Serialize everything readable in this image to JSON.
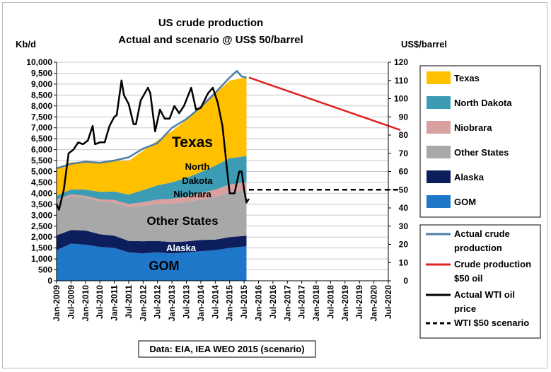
{
  "chart_data": {
    "type": "area",
    "title_line1": "US crude production",
    "title_line2": "Actual and scenario @ US$ 50/barrel",
    "left_axis_unit": "Kb/d",
    "right_axis_unit": "US$/barrel",
    "source_note": "Data: EIA, IEA WEO 2015 (scenario)",
    "left_axis": {
      "min": 0,
      "max": 10000,
      "step": 500,
      "tick_labels": [
        "0",
        "500",
        "1,000",
        "1,500",
        "2,000",
        "2,500",
        "3,000",
        "3,500",
        "4,000",
        "4,500",
        "5,000",
        "5,500",
        "6,000",
        "6,500",
        "7,000",
        "7,500",
        "8,000",
        "8,500",
        "9,000",
        "9,500",
        "10,000"
      ]
    },
    "right_axis": {
      "min": 0,
      "max": 120,
      "step": 10,
      "tick_labels": [
        "0",
        "10",
        "20",
        "30",
        "40",
        "50",
        "60",
        "70",
        "80",
        "90",
        "100",
        "110",
        "120"
      ]
    },
    "x_axis": {
      "start": "Jan-2009",
      "end": "Jul-2020",
      "tick_labels": [
        "Jan-2009",
        "Jul-2009",
        "Jan-2010",
        "Jul-2010",
        "Jan-2011",
        "Jul-2011",
        "Jan-2012",
        "Jul-2012",
        "Jan-2013",
        "Jul-2013",
        "Jan-2014",
        "Jul-2014",
        "Jan-2015",
        "Jul-2015",
        "Jan-2016",
        "Jul-2016",
        "Jan-2017",
        "Jul-2017",
        "Jan-2018",
        "Jul-2018",
        "Jan-2019",
        "Jul-2019",
        "Jan-2020",
        "Jul-2020"
      ]
    },
    "stack_dates": [
      "2009-01",
      "2009-07",
      "2010-01",
      "2010-07",
      "2011-01",
      "2011-07",
      "2012-01",
      "2012-07",
      "2013-01",
      "2013-07",
      "2014-01",
      "2014-07",
      "2015-01",
      "2015-08"
    ],
    "stacked_series": [
      {
        "name": "GOM",
        "color": "#1f77c9",
        "values": [
          1400,
          1700,
          1650,
          1550,
          1500,
          1300,
          1250,
          1300,
          1250,
          1300,
          1350,
          1400,
          1500,
          1580
        ]
      },
      {
        "name": "Alaska",
        "color": "#0c1f5c",
        "values": [
          680,
          620,
          650,
          580,
          560,
          520,
          560,
          520,
          520,
          500,
          520,
          480,
          500,
          480
        ]
      },
      {
        "name": "Other States",
        "color": "#a8a8a8",
        "values": [
          1550,
          1550,
          1500,
          1500,
          1520,
          1550,
          1620,
          1700,
          1750,
          1800,
          1850,
          1950,
          2050,
          2100
        ]
      },
      {
        "name": "Niobrara",
        "color": "#d9a0a0",
        "values": [
          80,
          80,
          90,
          100,
          120,
          140,
          170,
          200,
          230,
          260,
          300,
          340,
          360,
          350
        ]
      },
      {
        "name": "North Dakota",
        "color": "#3c9cb4",
        "values": [
          180,
          230,
          280,
          340,
          380,
          430,
          550,
          650,
          750,
          850,
          950,
          1100,
          1200,
          1200
        ]
      },
      {
        "name": "Texas",
        "color": "#ffc000",
        "values": [
          1250,
          1250,
          1250,
          1300,
          1400,
          1550,
          1800,
          2050,
          2350,
          2650,
          2950,
          3300,
          3550,
          3600
        ]
      }
    ],
    "series_labels": [
      {
        "series": "Texas",
        "text": "Texas"
      },
      {
        "series": "North Dakota",
        "text": "North"
      },
      {
        "series": "North Dakota",
        "text": "Dakota"
      },
      {
        "series": "Niobrara",
        "text": "Niobrara"
      },
      {
        "series": "Other States",
        "text": "Other States"
      },
      {
        "series": "Alaska",
        "text": "Alaska"
      },
      {
        "series": "GOM",
        "text": "GOM"
      }
    ],
    "wti_series": {
      "name": "Actual WTI oil price",
      "color": "#000000",
      "dates": [
        "2009-01",
        "2009-02",
        "2009-04",
        "2009-06",
        "2009-08",
        "2009-10",
        "2009-12",
        "2010-02",
        "2010-04",
        "2010-05",
        "2010-07",
        "2010-09",
        "2010-11",
        "2011-01",
        "2011-02",
        "2011-04",
        "2011-05",
        "2011-07",
        "2011-09",
        "2011-10",
        "2011-12",
        "2012-03",
        "2012-04",
        "2012-06",
        "2012-08",
        "2012-10",
        "2012-12",
        "2013-02",
        "2013-04",
        "2013-06",
        "2013-09",
        "2013-11",
        "2014-01",
        "2014-04",
        "2014-06",
        "2014-08",
        "2014-10",
        "2014-12",
        "2015-01",
        "2015-03",
        "2015-05",
        "2015-06",
        "2015-07",
        "2015-08",
        "2015-09"
      ],
      "values": [
        42,
        39,
        50,
        70,
        72,
        76,
        75,
        77,
        85,
        75,
        76,
        76,
        85,
        90,
        91,
        110,
        102,
        97,
        86,
        86,
        99,
        106,
        103,
        82,
        94,
        89,
        89,
        96,
        92,
        96,
        106,
        94,
        95,
        103,
        106,
        98,
        85,
        60,
        48,
        48,
        60,
        60,
        50,
        43,
        45
      ]
    },
    "actual_crude_production": {
      "name": "Actual crude production",
      "color": "#4a7ea8",
      "dates": [
        "2009-01",
        "2009-07",
        "2010-01",
        "2010-07",
        "2011-01",
        "2011-07",
        "2012-01",
        "2012-07",
        "2013-01",
        "2013-07",
        "2014-01",
        "2014-07",
        "2014-10",
        "2015-01",
        "2015-04",
        "2015-06",
        "2015-08"
      ],
      "values": [
        5150,
        5350,
        5450,
        5400,
        5500,
        5650,
        6050,
        6300,
        7000,
        7400,
        7950,
        8600,
        8950,
        9300,
        9600,
        9350,
        9300
      ]
    },
    "scenario_production": {
      "name": "Crude production $50 oil",
      "color": "#e0201c",
      "dates": [
        "2015-09",
        "2020-12"
      ],
      "values": [
        9300,
        6900
      ]
    },
    "wti_scenario": {
      "name": "WTI $50  scenario",
      "color": "#000000",
      "dates": [
        "2015-09",
        "2020-12"
      ],
      "values": [
        50,
        50
      ]
    },
    "legend_right": [
      {
        "series": "Texas",
        "text": "Texas",
        "color": "#ffc000"
      },
      {
        "series": "North Dakota",
        "text": "North Dakota",
        "color": "#3c9cb4"
      },
      {
        "series": "Niobrara",
        "text": "Niobrara",
        "color": "#d9a0a0"
      },
      {
        "series": "Other States",
        "text": "Other States",
        "color": "#a8a8a8"
      },
      {
        "series": "Alaska",
        "text": "Alaska",
        "color": "#0c1f5c"
      },
      {
        "series": "GOM",
        "text": "GOM",
        "color": "#1f77c9"
      }
    ],
    "legend_lines": [
      {
        "lines": [
          "Actual crude",
          "production"
        ],
        "color": "#4a7ea8",
        "style": "solid"
      },
      {
        "lines": [
          "Crude production",
          "$50 oil"
        ],
        "color": "#e0201c",
        "style": "solid"
      },
      {
        "lines": [
          "Actual WTI oil",
          "price"
        ],
        "color": "#000000",
        "style": "solid"
      },
      {
        "lines": [
          "WTI $50  scenario"
        ],
        "color": "#000000",
        "style": "dashed"
      }
    ],
    "grid": true
  }
}
